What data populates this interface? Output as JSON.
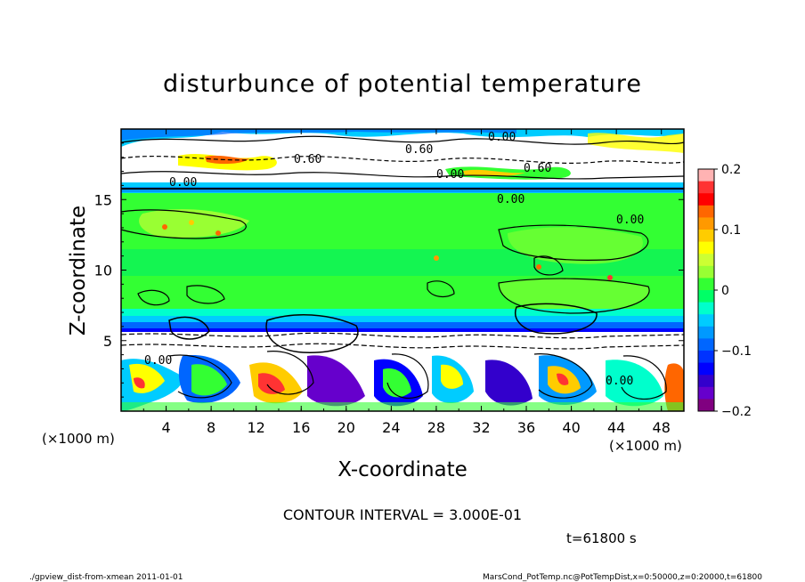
{
  "chart_data": {
    "type": "heatmap",
    "title": "disturbunce of potential temperature",
    "xlabel": "X-coordinate",
    "ylabel": "Z-coordinate",
    "x_unit": "(×1000 m)",
    "z_unit": "(×1000 m)",
    "xlim": [
      0,
      50
    ],
    "zlim": [
      0,
      20
    ],
    "x_ticks": [
      "4",
      "8",
      "12",
      "16",
      "20",
      "24",
      "28",
      "32",
      "36",
      "40",
      "44",
      "48"
    ],
    "z_ticks": [
      "5",
      "10",
      "15"
    ],
    "colorbar": {
      "range": [
        -0.2,
        0.2
      ],
      "tick_labels": [
        "0.2",
        "0.1",
        "0",
        "−0.1",
        "−0.2"
      ],
      "colors": [
        "#ffb3b3",
        "#ff3333",
        "#ff0000",
        "#ff6600",
        "#ff9900",
        "#ffcc00",
        "#ffff00",
        "#ccff33",
        "#99ff33",
        "#33ff33",
        "#00ff66",
        "#00ffcc",
        "#00ccff",
        "#0099ff",
        "#0066ff",
        "#0033ff",
        "#0000ff",
        "#3300cc",
        "#6600cc",
        "#800080"
      ]
    },
    "contour_labels": [
      "0.60",
      "0.00",
      "0.00",
      "0.60",
      "0.00",
      "0.60",
      "0.00",
      "0.00",
      "0.00",
      "0.00"
    ],
    "contour_interval": "CONTOUR INTERVAL = 3.000E-01",
    "time": "t=61800 s"
  },
  "footer": {
    "left": "./gpview_dist-from-xmean  2011-01-01",
    "right": "MarsCond_PotTemp.nc@PotTempDist,x=0:50000,z=0:20000,t=61800"
  }
}
